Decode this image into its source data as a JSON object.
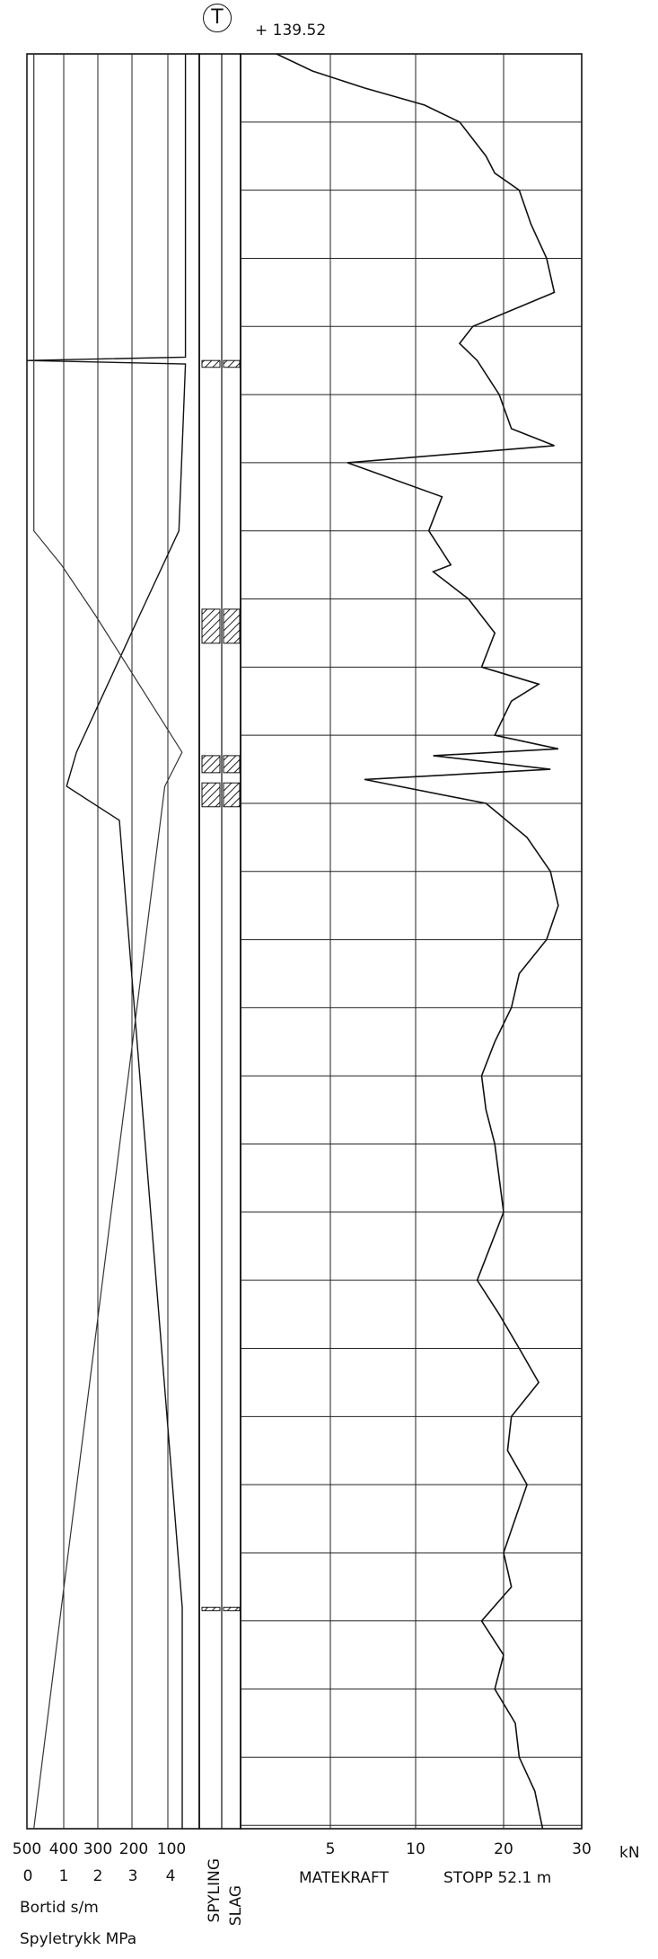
{
  "header": {
    "symbol": "T",
    "elevation": "+ 139.52"
  },
  "left_panel": {
    "bortid_ticks": [
      "500",
      "400",
      "300",
      "200",
      "100"
    ],
    "spyle_ticks": [
      "0",
      "1",
      "2",
      "3",
      "4"
    ],
    "label_bortid": "Bortid s/m",
    "label_spyle": "Spyletrykk MPa"
  },
  "middle_panel": {
    "label_spyling": "SPYLING",
    "label_slag": "SLAG"
  },
  "right_panel": {
    "x_ticks": [
      "5",
      "10",
      "20",
      "30"
    ],
    "unit": "kN",
    "xlabel": "MATEKRAFT",
    "stop_label": "STOPP 52.1 m"
  },
  "chart_data": {
    "type": "line",
    "title": "",
    "xlabel": "MATEKRAFT",
    "ylabel": "",
    "x_unit": "kN",
    "xlim": [
      0,
      30
    ],
    "ylim_depth_m": [
      0,
      52.1
    ],
    "grid": true,
    "series": [
      {
        "name": "",
        "depth_m": [
          0,
          0.5,
          1.0,
          1.5,
          2.0,
          3.0,
          3.5,
          4.0,
          5.0,
          6.0,
          7.0,
          8.0,
          8.5,
          9.0,
          10.0,
          11.0,
          11.5,
          12.0,
          13.0,
          14.0,
          15.0,
          15.2,
          16.0,
          17.0,
          18.0,
          18.5,
          19.0,
          20.0,
          20.4,
          20.6,
          21.0,
          21.3,
          22.0,
          23.0,
          24.0,
          25.0,
          26.0,
          27.0,
          28.0,
          29.0,
          30.0,
          31.0,
          32.0,
          33.0,
          34.0,
          35.0,
          36.0,
          37.0,
          38.0,
          39.0,
          40.0,
          41.0,
          42.0,
          43.0,
          44.0,
          45.0,
          46.0,
          47.0,
          48.0,
          49.0,
          50.0,
          51.0,
          52.1
        ],
        "x_kN": [
          2.0,
          4.0,
          7.0,
          11.0,
          15.0,
          18.0,
          19.0,
          22.0,
          23.5,
          25.5,
          26.5,
          16.5,
          15.0,
          17.0,
          19.5,
          21.0,
          26.5,
          6.0,
          13.0,
          11.5,
          14.0,
          12.0,
          16.0,
          19.0,
          17.5,
          24.5,
          21.0,
          19.0,
          27.0,
          12.0,
          26.0,
          7.0,
          18.0,
          23.0,
          26.0,
          27.0,
          25.5,
          22.0,
          21.0,
          19.0,
          17.5,
          18.0,
          19.0,
          19.5,
          20.0,
          18.5,
          17.0,
          19.5,
          22.0,
          24.5,
          21.0,
          20.5,
          23.0,
          21.5,
          20.0,
          21.0,
          17.5,
          20.0,
          19.0,
          21.5,
          22.0,
          24.0,
          25.0
        ]
      }
    ],
    "bortid_s_per_m": {
      "xlim_reversed": [
        500,
        0
      ],
      "depth_m": [
        0,
        8.9,
        9.0,
        9.1,
        14.0,
        16.5,
        20.5,
        21.5,
        22.5,
        45.6,
        52.1
      ],
      "values": [
        20,
        20,
        500,
        20,
        40,
        160,
        350,
        380,
        220,
        30,
        30
      ]
    },
    "spyletrykk_MPa": {
      "xlim": [
        0,
        5
      ],
      "depth_m": [
        0,
        14.0,
        15.0,
        16.5,
        20.5,
        21.5,
        45.6,
        52.1
      ],
      "values": [
        0.2,
        0.2,
        1.0,
        2.0,
        4.5,
        4.0,
        1.0,
        0.2
      ]
    },
    "spyling_intervals_m": [
      [
        9.0,
        9.2
      ],
      [
        16.3,
        17.3
      ],
      [
        20.6,
        21.1
      ],
      [
        21.4,
        22.1
      ],
      [
        45.6,
        45.7
      ]
    ],
    "slag_intervals_m": [
      [
        9.0,
        9.2
      ],
      [
        16.3,
        17.3
      ],
      [
        20.6,
        21.1
      ],
      [
        21.4,
        22.1
      ],
      [
        45.6,
        45.7
      ]
    ]
  }
}
